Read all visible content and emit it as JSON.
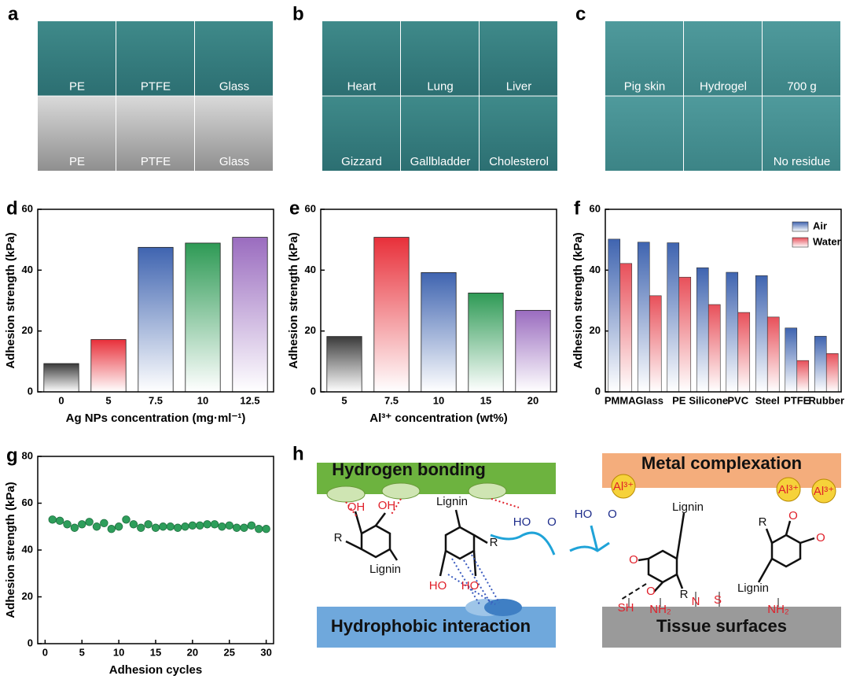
{
  "panels": [
    {
      "label": "a",
      "captions": [
        "PE",
        "PTFE",
        "Glass",
        "PE",
        "PTFE",
        "Glass"
      ]
    },
    {
      "label": "b",
      "captions": [
        "Heart",
        "Lung",
        "Liver",
        "Gizzard",
        "Gallbladder",
        "Cholesterol"
      ]
    },
    {
      "label": "c",
      "captions": [
        "Pig skin",
        "Hydrogel",
        "700 g",
        "No residue"
      ]
    }
  ],
  "chart_data": [
    {
      "type": "bar",
      "panel_label": "d",
      "x_label": "Ag NPs concentration (mg·ml⁻¹)",
      "y_label": "Adhesion strength (kPa)",
      "categories": [
        "0",
        "5",
        "7.5",
        "10",
        "12.5"
      ],
      "values": [
        9.3,
        17.2,
        47.5,
        48.9,
        50.8
      ],
      "colors": [
        "#3a3a3a",
        "#e8303a",
        "#3f64b0",
        "#2e9a55",
        "#9a6cbf"
      ],
      "ylim": [
        0,
        60
      ],
      "yticks": [
        0,
        20,
        40,
        60
      ]
    },
    {
      "type": "bar",
      "panel_label": "e",
      "x_label": "Al³⁺ concentration (wt%)",
      "y_label": "Adhesion strength (kPa)",
      "categories": [
        "5",
        "7.5",
        "10",
        "15",
        "20"
      ],
      "values": [
        18.2,
        50.8,
        39.2,
        32.5,
        26.8
      ],
      "colors": [
        "#3a3a3a",
        "#e8303a",
        "#3f64b0",
        "#2e9a55",
        "#9a6cbf"
      ],
      "ylim": [
        0,
        60
      ],
      "yticks": [
        0,
        20,
        40,
        60
      ]
    },
    {
      "type": "grouped-bar",
      "panel_label": "f",
      "y_label": "Adhesion strength (kPa)",
      "categories": [
        "PMMA",
        "Glass",
        "PE",
        "Silicone",
        "PVC",
        "Steel",
        "PTFE",
        "Rubber"
      ],
      "series": [
        {
          "name": "Air",
          "color": "#3f64b0",
          "values": [
            50.2,
            49.2,
            49.0,
            40.8,
            39.3,
            38.2,
            21.0,
            18.3
          ]
        },
        {
          "name": "Water",
          "color": "#e8505a",
          "values": [
            42.2,
            31.6,
            37.7,
            28.7,
            26.1,
            24.6,
            10.3,
            12.6
          ]
        }
      ],
      "legend": "top-right",
      "ylim": [
        0,
        60
      ],
      "yticks": [
        0,
        20,
        40,
        60
      ]
    },
    {
      "type": "scatter",
      "panel_label": "g",
      "x_label": "Adhesion cycles",
      "y_label": "Adhesion strength (kPa)",
      "x": [
        1,
        2,
        3,
        4,
        5,
        6,
        7,
        8,
        9,
        10,
        11,
        12,
        13,
        14,
        15,
        16,
        17,
        18,
        19,
        20,
        21,
        22,
        23,
        24,
        25,
        26,
        27,
        28,
        29,
        30
      ],
      "values": [
        53,
        52.5,
        51,
        49.5,
        51,
        52,
        50,
        51.5,
        49,
        50,
        53,
        51,
        49.5,
        51,
        49.5,
        50,
        50,
        49.5,
        50,
        50.5,
        50.5,
        51,
        51,
        50,
        50.5,
        49.5,
        49.5,
        50.5,
        49,
        49
      ],
      "color": "#2e9e5b",
      "xlim": [
        -1,
        31
      ],
      "xticks": [
        0,
        5,
        10,
        15,
        20,
        25,
        30
      ],
      "ylim": [
        0,
        80
      ],
      "yticks": [
        0,
        20,
        40,
        60,
        80
      ]
    }
  ],
  "diagram": {
    "label": "h",
    "boxes": [
      "Hydrogen bonding",
      "Metal complexation",
      "Hydrophobic interaction",
      "Tissue surfaces"
    ],
    "labels": [
      "OH",
      "OH",
      "R",
      "Lignin",
      "Lignin",
      "R",
      "HO",
      "HO",
      "HO",
      "O",
      "HO",
      "O",
      "Al³⁺",
      "Lignin",
      "O",
      "O",
      "R",
      "SH",
      "NH₂",
      "N",
      "S",
      "NH₂",
      "R",
      "O",
      "O",
      "Lignin",
      "Al³⁺",
      "Al³⁺"
    ]
  }
}
